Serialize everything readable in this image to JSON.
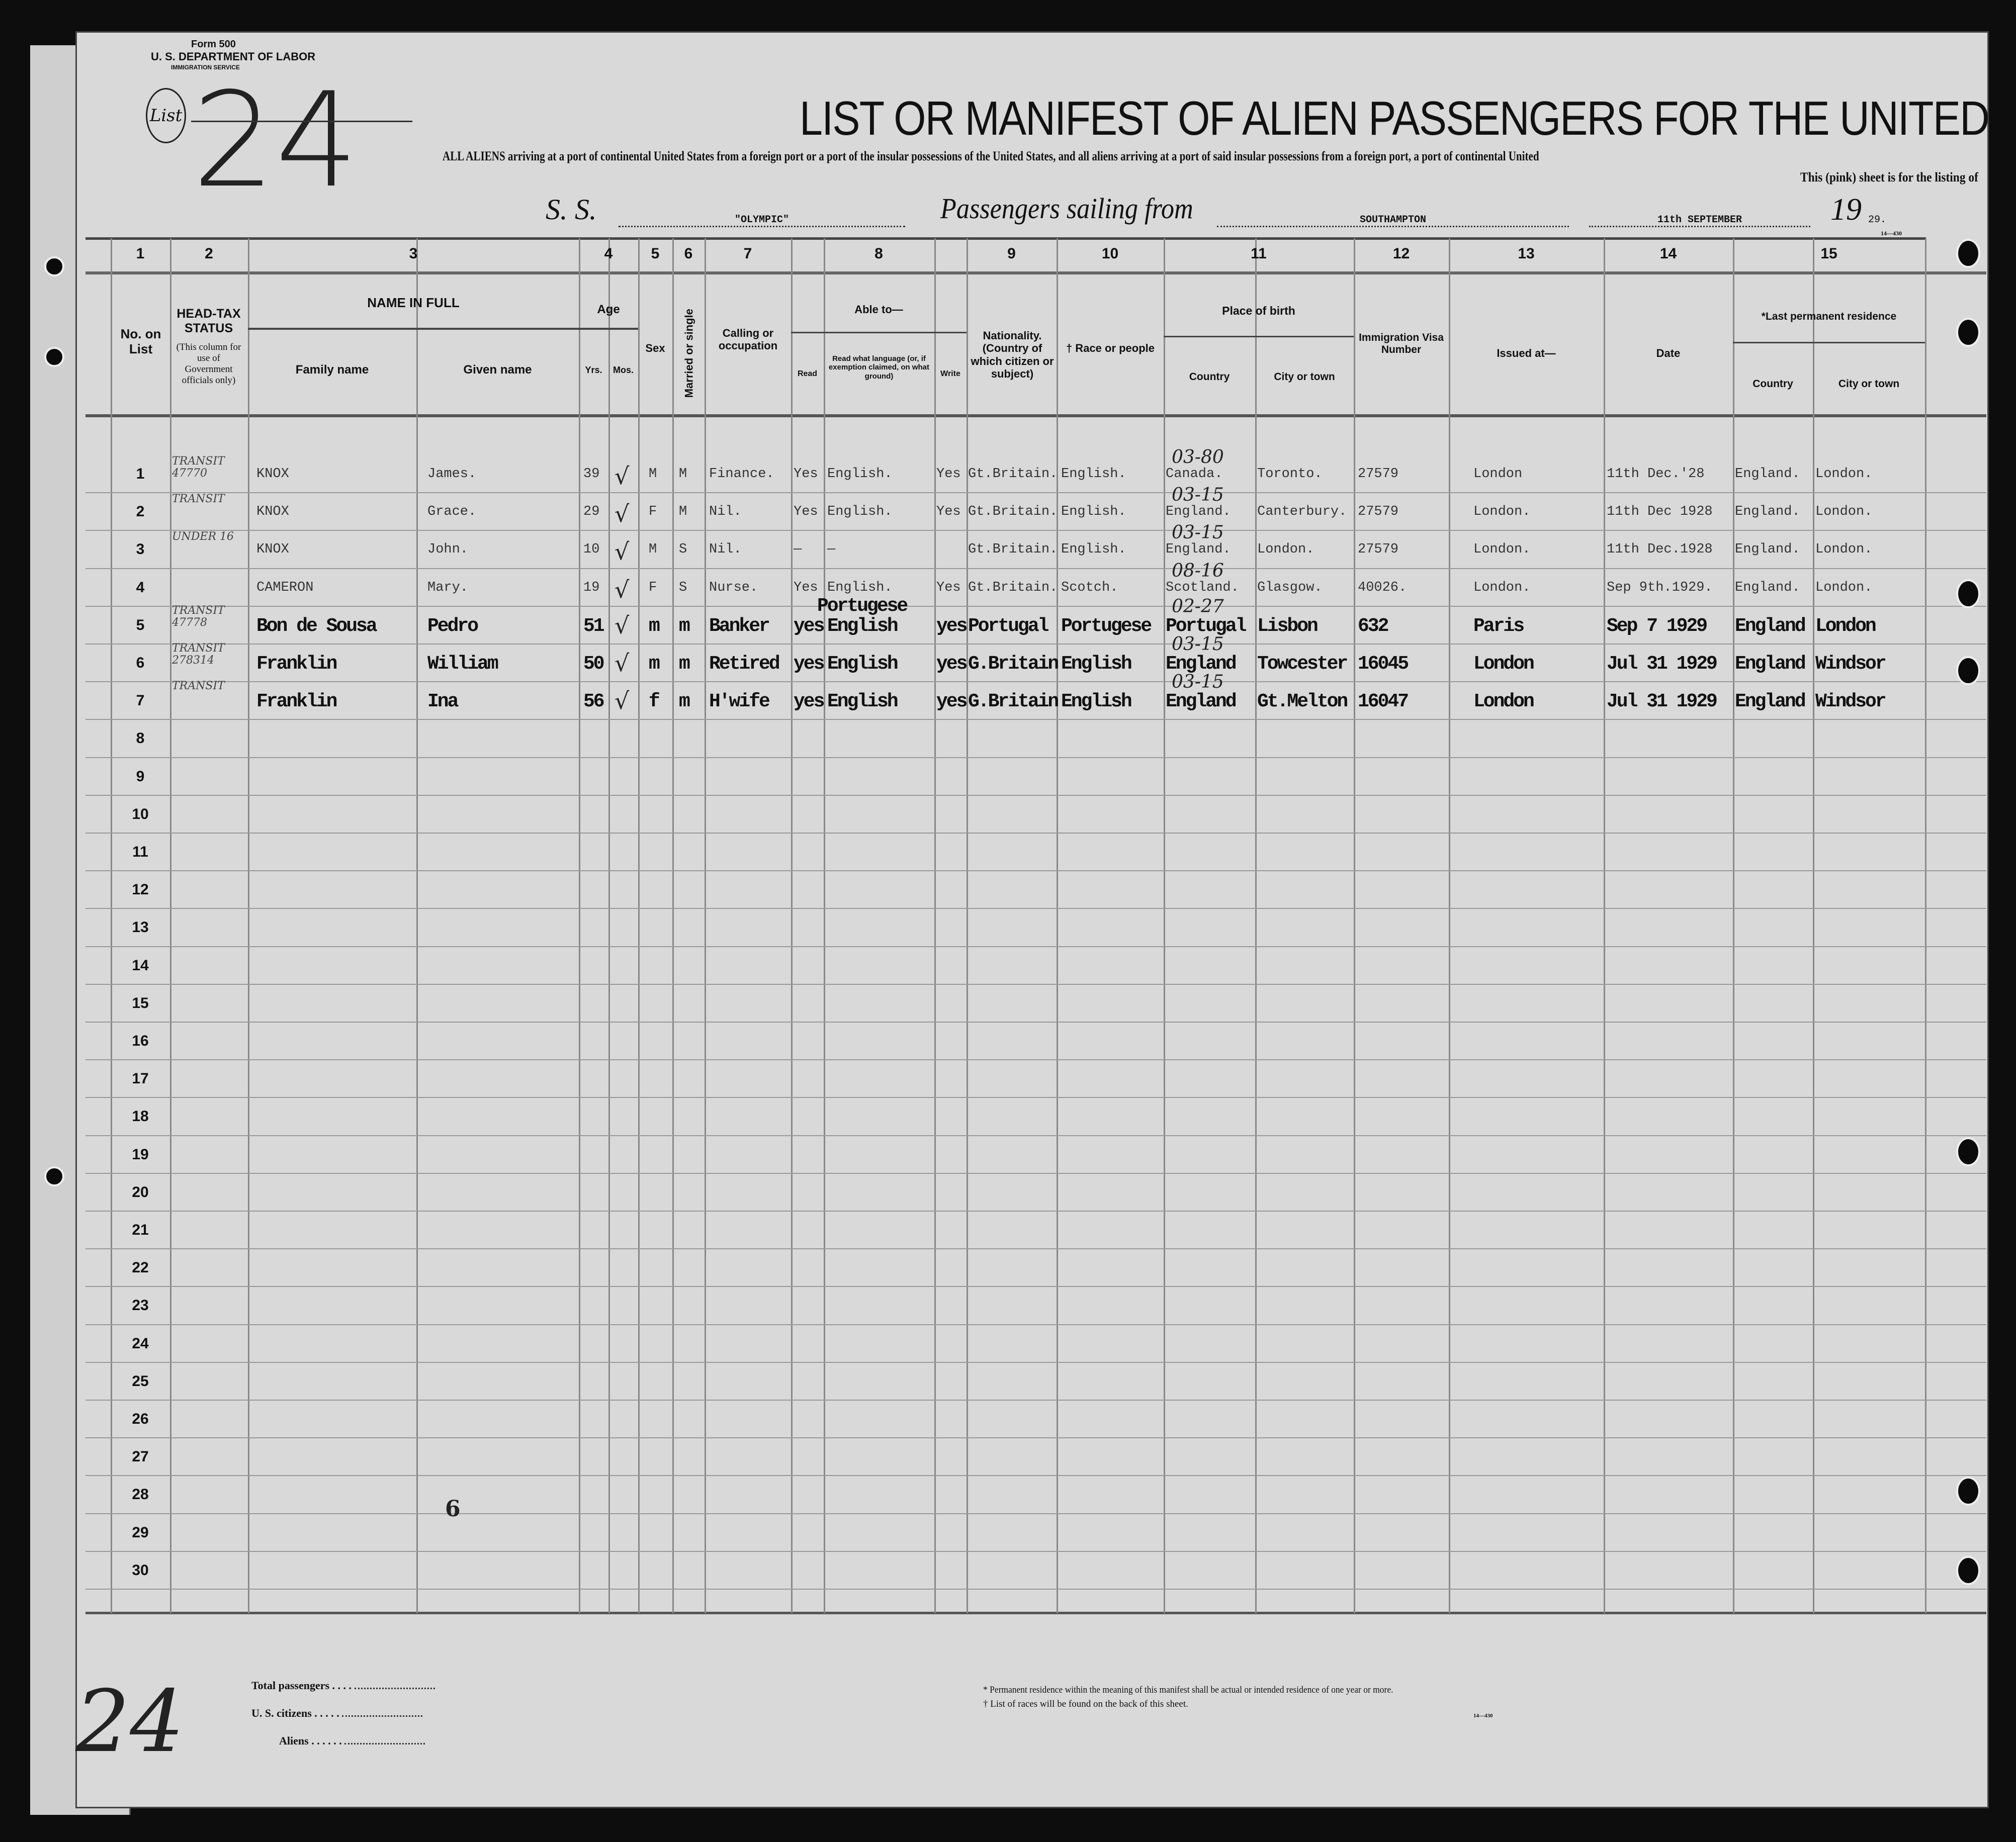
{
  "form": {
    "form_number": "Form 500",
    "department": "U. S. DEPARTMENT OF LABOR",
    "service": "IMMIGRATION SERVICE",
    "list_label": "List",
    "list_number": "24",
    "title": "LIST OR MANIFEST OF ALIEN PASSENGERS FOR THE UNITED",
    "instruction": "ALL ALIENS arriving at a port of continental United States from a foreign port or a port of the insular possessions of the United States, and all aliens arriving at a port of said insular possessions from a foreign port, a port of continental United",
    "pink_sheet": "This (pink) sheet is for the listing of",
    "ss_label": "S. S.",
    "ship": "\"OLYMPIC\"",
    "sailing_label": "Passengers sailing from",
    "port": "SOUTHAMPTON",
    "date": "11th SEPTEMBER",
    "year_prefix": "19",
    "year_suffix": "29.",
    "form_code": "14—430"
  },
  "columns": {
    "numbers": [
      "1",
      "2",
      "3",
      "4",
      "5",
      "6",
      "7",
      "8",
      "9",
      "10",
      "11",
      "12",
      "13",
      "14",
      "15"
    ],
    "no_on_list": "No. on List",
    "head_tax": "HEAD-TAX STATUS",
    "head_tax_note": "(This column for use of Government officials only)",
    "name_in_full": "NAME IN FULL",
    "family_name": "Family name",
    "given_name": "Given name",
    "age": "Age",
    "yrs": "Yrs.",
    "mos": "Mos.",
    "sex": "Sex",
    "married": "Married or single",
    "calling": "Calling or occupation",
    "able_to": "Able to—",
    "read": "Read",
    "read_language": "Read what language (or, if exemption claimed, on what ground)",
    "write": "Write",
    "nationality": "Nationality. (Country of which citizen or subject)",
    "race": "† Race or people",
    "place_of_birth": "Place of birth",
    "country": "Country",
    "city": "City or town",
    "visa": "Immigration Visa Number",
    "issued_at": "Issued at—",
    "date": "Date",
    "last_residence": "*Last permanent residence",
    "res_country": "Country",
    "res_city": "City or town"
  },
  "passengers": [
    {
      "no": "1",
      "family": "KNOX",
      "given": "James.",
      "yrs": "39",
      "sex": "M",
      "married": "M",
      "occupation": "Finance.",
      "read": "Yes",
      "language": "English.",
      "write": "Yes",
      "nationality": "Gt.Britain.",
      "race": "English.",
      "birth_country": "Canada.",
      "birth_city": "Toronto.",
      "visa": "27579",
      "issued": "London",
      "date": "11th Dec.'28",
      "res_country": "England.",
      "res_city": "London.",
      "note_birth": "03-80",
      "headtax": "TRANSIT 47770"
    },
    {
      "no": "2",
      "family": "KNOX",
      "given": "Grace.",
      "yrs": "29",
      "sex": "F",
      "married": "M",
      "occupation": "Nil.",
      "read": "Yes",
      "language": "English.",
      "write": "Yes",
      "nationality": "Gt.Britain.",
      "race": "English.",
      "birth_country": "England.",
      "birth_city": "Canterbury.",
      "visa": "27579",
      "issued": "London.",
      "date": "11th Dec 1928",
      "res_country": "England.",
      "res_city": "London.",
      "note_birth": "03-15",
      "headtax": "TRANSIT"
    },
    {
      "no": "3",
      "family": "KNOX",
      "given": "John.",
      "yrs": "10",
      "sex": "M",
      "married": "S",
      "occupation": "Nil.",
      "read": "—",
      "language": "—",
      "write": "",
      "nationality": "Gt.Britain.",
      "race": "English.",
      "birth_country": "England.",
      "birth_city": "London.",
      "visa": "27579",
      "issued": "London.",
      "date": "11th Dec.1928",
      "res_country": "England.",
      "res_city": "London.",
      "note_birth": "03-15",
      "headtax": "UNDER 16"
    },
    {
      "no": "4",
      "family": "CAMERON",
      "given": "Mary.",
      "yrs": "19",
      "sex": "F",
      "married": "S",
      "occupation": "Nurse.",
      "read": "Yes",
      "language": "English.",
      "write": "Yes",
      "nationality": "Gt.Britain.",
      "race": "Scotch.",
      "birth_country": "Scotland.",
      "birth_city": "Glasgow.",
      "visa": "40026.",
      "issued": "London.",
      "date": "Sep 9th.1929.",
      "res_country": "England.",
      "res_city": "London.",
      "note_birth": "08-16",
      "headtax": ""
    },
    {
      "no": "5",
      "family": "Bon de Sousa",
      "given": "Pedro",
      "yrs": "51",
      "sex": "m",
      "married": "m",
      "occupation": "Banker",
      "read": "yes",
      "language": "English",
      "language_extra": "Portugese",
      "write": "yes",
      "nationality": "Portugal",
      "race": "Portugese",
      "birth_country": "Portugal",
      "birth_city": "Lisbon",
      "visa": "632",
      "issued": "Paris",
      "date": "Sep 7 1929",
      "res_country": "England",
      "res_city": "London",
      "note_birth": "02-27",
      "headtax": "TRANSIT 47778"
    },
    {
      "no": "6",
      "family": "Franklin",
      "given": "William",
      "yrs": "50",
      "sex": "m",
      "married": "m",
      "occupation": "Retired",
      "read": "yes",
      "language": "English",
      "write": "yes",
      "nationality": "G.Britain",
      "race": "English",
      "birth_country": "England",
      "birth_city": "Towcester",
      "visa": "16045",
      "issued": "London",
      "date": "Jul 31 1929",
      "res_country": "England",
      "res_city": "Windsor",
      "note_birth": "03-15",
      "headtax": "TRANSIT 278314"
    },
    {
      "no": "7",
      "family": "Franklin",
      "given": "Ina",
      "yrs": "56",
      "sex": "f",
      "married": "m",
      "occupation": "H'wife",
      "read": "yes",
      "language": "English",
      "write": "yes",
      "nationality": "G.Britain",
      "race": "English",
      "birth_country": "England",
      "birth_city": "Gt.Melton",
      "visa": "16047",
      "issued": "London",
      "date": "Jul 31 1929",
      "res_country": "England",
      "res_city": "Windsor",
      "note_birth": "03-15",
      "headtax": "TRANSIT"
    }
  ],
  "row_numbers": [
    "1",
    "2",
    "3",
    "4",
    "5",
    "6",
    "7",
    "8",
    "9",
    "10",
    "11",
    "12",
    "13",
    "14",
    "15",
    "16",
    "17",
    "18",
    "19",
    "20",
    "21",
    "22",
    "23",
    "24",
    "25",
    "26",
    "27",
    "28",
    "29",
    "30"
  ],
  "annotations": {
    "page_count": "6",
    "bottom_list_number": "24"
  },
  "footer": {
    "total_passengers": "Total passengers",
    "us_citizens": "U. S. citizens",
    "aliens": "Aliens",
    "note_residence": "* Permanent residence within the meaning of this manifest shall be actual or intended residence of one year or more.",
    "note_races": "† List of races will be found on the back of this sheet.",
    "form_code": "14—430"
  }
}
